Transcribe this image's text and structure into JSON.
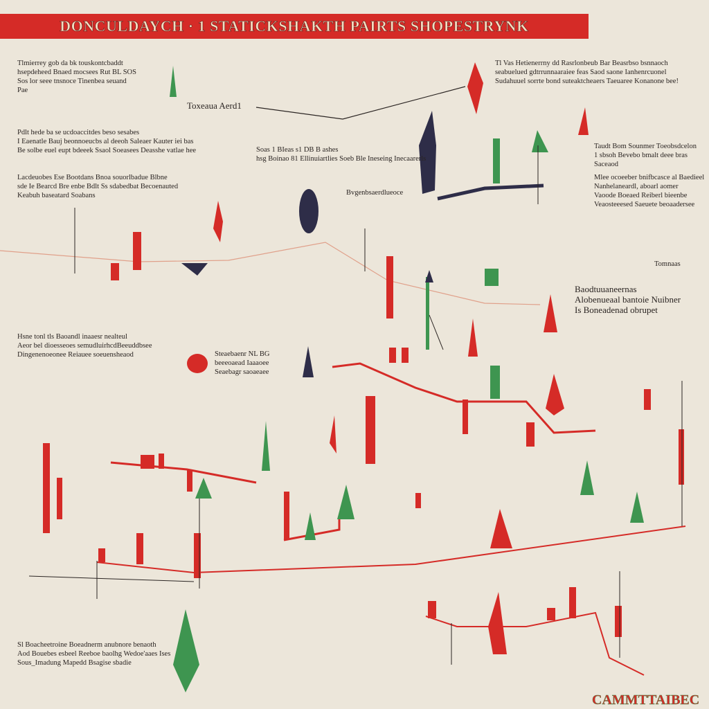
{
  "header": {
    "title": "DONCULDAYCH · 1 STATICKSHAKTH PAIRTS SHOPESTRYNK"
  },
  "notes": [
    {
      "lines": [
        "Tlmierrey gob da bk touskontcbaddt",
        "hsepdeheed Bnaed mocsees Rut BL SOS",
        "Sos lor seee tnsnoce Tinenbea seuand",
        "Pae"
      ]
    },
    {
      "lines": [
        "Toxeaua Aerd1"
      ]
    },
    {
      "lines": [
        "Tl Vas Hetienerrny dd Rasrlonbeub Bar Beasrbso bsnnaoch",
        "seabuelued gdtrrunnaaraiee feas Saod saone Ianhenrcuonel",
        "Sudahuuel sorrte bond suteaktcheaers Taeuaree Konanone bee!"
      ]
    },
    {
      "lines": [
        "Pdlt hede ba se ucdoaccitdes beso sesabes",
        "I Eaenatle Bauj beonnoeucbs al deeoh Saleaer Kauter iei bas",
        "Be solbe euel eupt bdeeek Ssaol Soeasees Deasshe vatlae hee"
      ]
    },
    {
      "lines": [
        "Soas 1 BIeas s1 DB B ashes",
        "hsg Boinao 81 Ellinuiartlies Soeb Ble Ineseing Inecaarerls"
      ]
    },
    {
      "lines": [
        "Lacdeuobes Ese Bootdans Bnoa souorlbadue Blbne",
        "sde Ie Bearcd Bre enbe Bdlt Ss sdabedbat Becoenauted",
        "Keabuh baseatard Soabans"
      ]
    },
    {
      "lines": [
        "Bvgenbsaerdlueoce"
      ]
    },
    {
      "lines": [
        "Taudt Bom Sounmer Toeobsdcelon",
        "1 sbsoh Bevebo bmalt deee bras",
        "Saceaod"
      ]
    },
    {
      "lines": [
        "Mlee ocoeeber bnifbcasce al Baedieel",
        "Nanhelaneardl, aboarl aomer",
        "Vaoode Boeaed Reiberl bieenbe",
        "Veaosteeesed Saeuete beoaadersee"
      ]
    },
    {
      "lines": [
        "Tomnaas"
      ]
    },
    {
      "lines": [
        "Baodtuuaneernas",
        "Alobenueaal bantoie Nuibner",
        "Is Boneadenad obrupet"
      ]
    },
    {
      "lines": [
        "Hsne tonl tls Baoandl inaaesr nealteul",
        "Aeor bel dioesseoes semudluirhcdBeeuddbsee",
        "Dingenenoeonee Reiauee soeuensheaod"
      ]
    },
    {
      "lines": [
        "Steaebaenr NL BG",
        "beeeoaead Iaaaoee",
        "Seaebagr saoaeaee"
      ]
    },
    {
      "lines": [
        "Sl Boacheetroine Boeadnerm anubnore benaoth",
        "Aod Bouebes esbeel Reeboe baolhg Wedoe'aaes Ises",
        "Sous_Imadung Mapedd Bsagise sbadie"
      ]
    }
  ],
  "footer": "CAMMTTAIBEC"
}
